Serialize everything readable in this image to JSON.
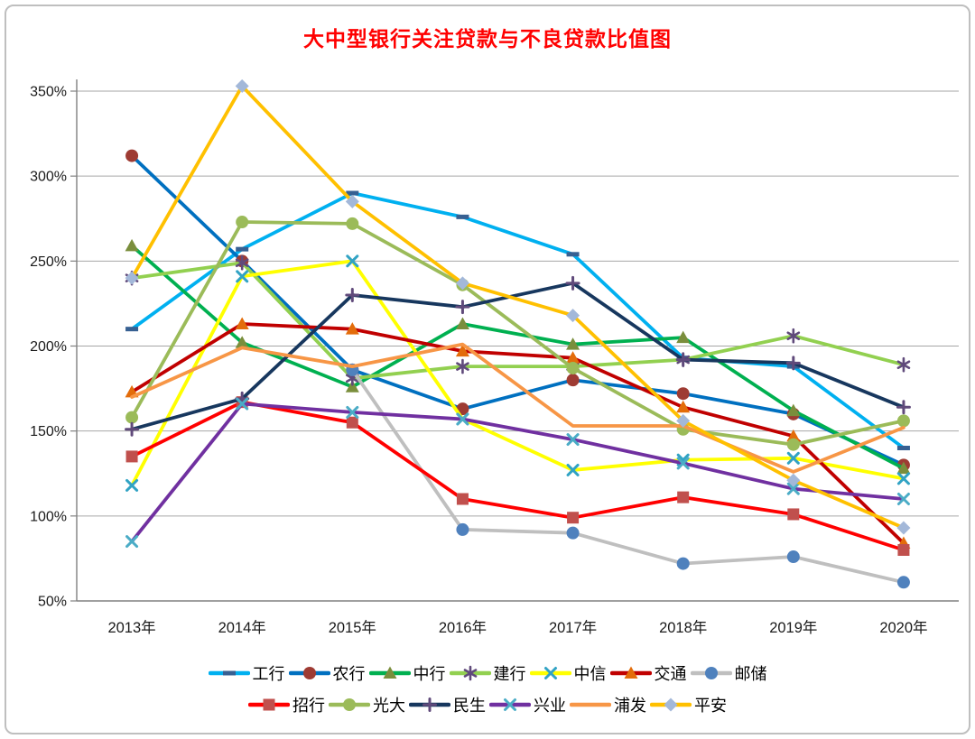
{
  "page": {
    "title": "大中型银行关注贷款与不良贷款比值图",
    "title_color": "#FF0000"
  },
  "chart_data": {
    "type": "line",
    "title": "大中型银行关注贷款与不良贷款比值图",
    "xlabel": "",
    "ylabel": "",
    "ylim": [
      50,
      350
    ],
    "y_step": 50,
    "grid": true,
    "legend_position": "bottom",
    "y_tick_labels": [
      "50%",
      "100%",
      "150%",
      "200%",
      "250%",
      "300%",
      "350%"
    ],
    "categories": [
      "2013年",
      "2014年",
      "2015年",
      "2016年",
      "2017年",
      "2018年",
      "2019年",
      "2020年"
    ],
    "legend_rows": [
      [
        "工行",
        "农行",
        "中行",
        "建行",
        "中信",
        "交通",
        "邮储"
      ],
      [
        "招行",
        "光大",
        "民生",
        "兴业",
        "浦发",
        "平安"
      ]
    ],
    "series": [
      {
        "name": "工行",
        "color": "#00B0F0",
        "marker": "dash",
        "marker_color": "#376092",
        "values": [
          210,
          257,
          290,
          276,
          254,
          193,
          188,
          140
        ]
      },
      {
        "name": "农行",
        "color": "#0070C0",
        "marker": "circle",
        "marker_color": "#9E3B33",
        "values": [
          312,
          250,
          186,
          163,
          180,
          172,
          160,
          130
        ]
      },
      {
        "name": "中行",
        "color": "#00B050",
        "marker": "triangle",
        "marker_color": "#7A8E3C",
        "values": [
          259,
          202,
          176,
          213,
          201,
          205,
          162,
          128
        ]
      },
      {
        "name": "建行",
        "color": "#92D050",
        "marker": "asterisk",
        "marker_color": "#604A7B",
        "values": [
          240,
          249,
          181,
          188,
          188,
          192,
          206,
          189
        ]
      },
      {
        "name": "中信",
        "color": "#FFFF00",
        "marker": "x",
        "marker_color": "#31A3C4",
        "values": [
          118,
          241,
          250,
          157,
          127,
          133,
          134,
          122
        ]
      },
      {
        "name": "交通",
        "color": "#C00000",
        "marker": "triangle",
        "marker_color": "#E36C0A",
        "values": [
          173,
          213,
          210,
          197,
          193,
          164,
          147,
          84
        ]
      },
      {
        "name": "邮储",
        "color": "#BFBFBF",
        "marker": "circle",
        "marker_color": "#4F81BD",
        "values": [
          null,
          null,
          186,
          92,
          90,
          72,
          76,
          61
        ]
      },
      {
        "name": "招行",
        "color": "#FF0000",
        "marker": "square",
        "marker_color": "#C0504D",
        "values": [
          135,
          167,
          155,
          110,
          99,
          111,
          101,
          80
        ]
      },
      {
        "name": "光大",
        "color": "#9BBB59",
        "marker": "circle",
        "marker_color": "#9BBB59",
        "values": [
          158,
          273,
          272,
          236,
          187,
          151,
          142,
          156
        ]
      },
      {
        "name": "民生",
        "color": "#17375E",
        "marker": "plus",
        "marker_color": "#604A7B",
        "values": [
          151,
          169,
          230,
          223,
          237,
          192,
          190,
          164
        ]
      },
      {
        "name": "兴业",
        "color": "#7030A0",
        "marker": "x",
        "marker_color": "#4BACC6",
        "values": [
          85,
          166,
          161,
          157,
          145,
          131,
          116,
          110
        ]
      },
      {
        "name": "浦发",
        "color": "#F79646",
        "marker": "none",
        "marker_color": "#F79646",
        "values": [
          170,
          199,
          188,
          201,
          153,
          153,
          126,
          152
        ]
      },
      {
        "name": "平安",
        "color": "#FFC000",
        "marker": "diamond",
        "marker_color": "#A3B8D9",
        "values": [
          240,
          353,
          285,
          237,
          218,
          156,
          121,
          93
        ]
      }
    ]
  }
}
